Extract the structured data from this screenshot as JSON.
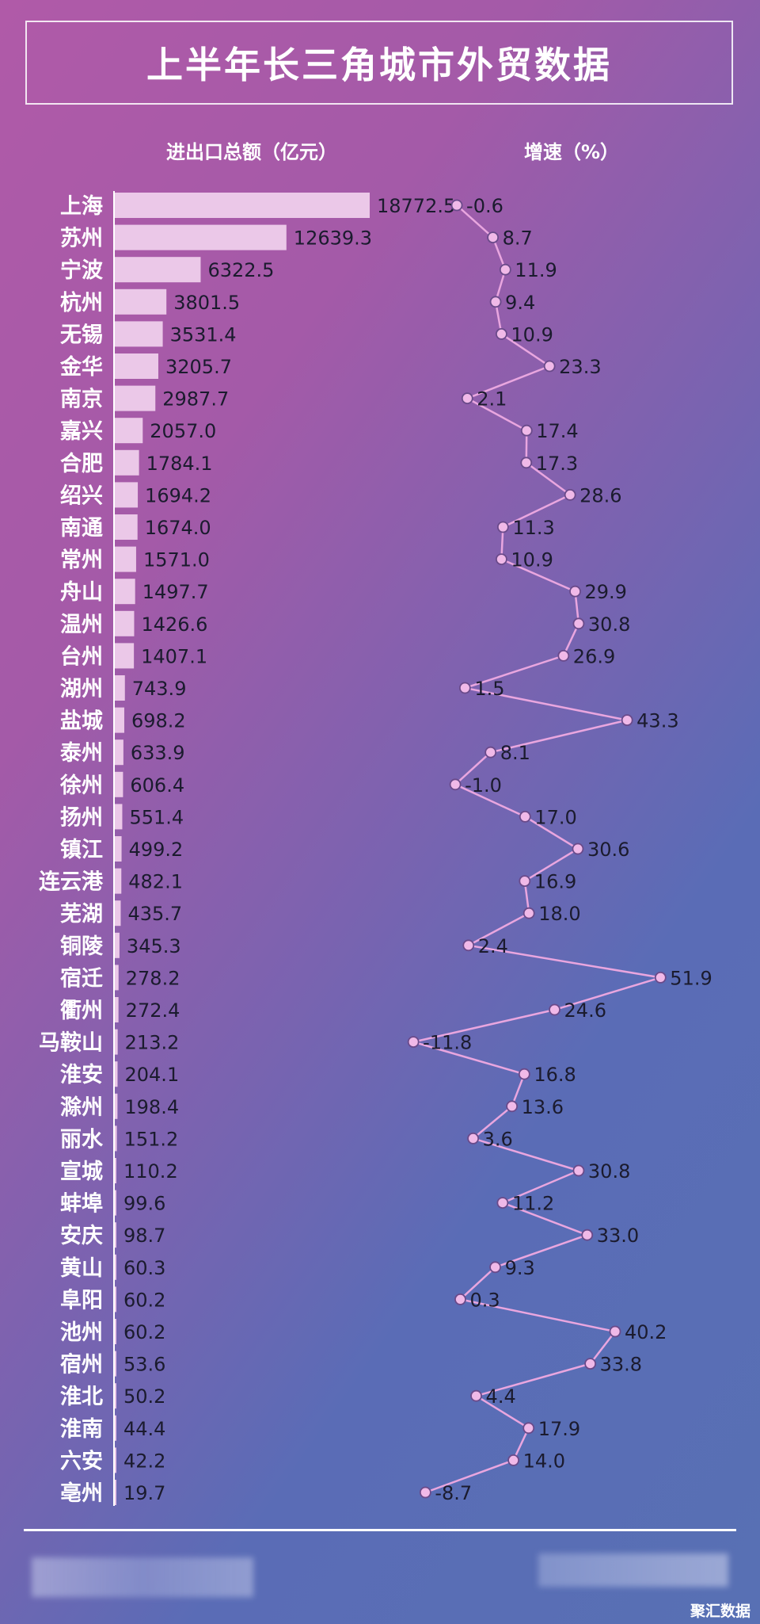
{
  "title": "上半年长三角城市外贸数据",
  "headers": {
    "total": "进出口总额（亿元）",
    "growth": "增速（%）"
  },
  "source": "聚汇数据",
  "colors": {
    "bar": "#ebc8e8",
    "line": "#e9a6df",
    "marker": "#f0b9e8",
    "marker_stroke": "#6a4a8a",
    "text": "#1b1b2e",
    "axis": "#ffffff"
  },
  "chart_data": [
    {
      "type": "bar",
      "orientation": "horizontal",
      "title": "进出口总额（亿元）",
      "categories": [
        "上海",
        "苏州",
        "宁波",
        "杭州",
        "无锡",
        "金华",
        "南京",
        "嘉兴",
        "合肥",
        "绍兴",
        "南通",
        "常州",
        "舟山",
        "温州",
        "台州",
        "湖州",
        "盐城",
        "泰州",
        "徐州",
        "扬州",
        "镇江",
        "连云港",
        "芜湖",
        "铜陵",
        "宿迁",
        "衢州",
        "马鞍山",
        "淮安",
        "滁州",
        "丽水",
        "宣城",
        "蚌埠",
        "安庆",
        "黄山",
        "阜阳",
        "池州",
        "宿州",
        "淮北",
        "淮南",
        "六安",
        "亳州"
      ],
      "values": [
        18772.5,
        12639.3,
        6322.5,
        3801.5,
        3531.4,
        3205.7,
        2987.7,
        2057.0,
        1784.1,
        1694.2,
        1674.0,
        1571.0,
        1497.7,
        1426.6,
        1407.1,
        743.9,
        698.2,
        633.9,
        606.4,
        551.4,
        499.2,
        482.1,
        435.7,
        345.3,
        278.2,
        272.4,
        213.2,
        204.1,
        198.4,
        151.2,
        110.2,
        99.6,
        98.7,
        60.3,
        60.2,
        60.2,
        53.6,
        50.2,
        44.4,
        42.2,
        19.7
      ],
      "value_labels": [
        "18772.5",
        "12639.3",
        "6322.5",
        "3801.5",
        "3531.4",
        "3205.7",
        "2987.7",
        "2057.0",
        "1784.1",
        "1694.2",
        "1674.0",
        "1571.0",
        "1497.7",
        "1426.6",
        "1407.1",
        "743.9",
        "698.2",
        "633.9",
        "606.4",
        "551.4",
        "499.2",
        "482.1",
        "435.7",
        "345.3",
        "278.2",
        "272.4",
        "213.2",
        "204.1",
        "198.4",
        "151.2",
        "110.2",
        "99.6",
        "98.7",
        "60.3",
        "60.2",
        "60.2",
        "53.6",
        "50.2",
        "44.4",
        "42.2",
        "19.7"
      ],
      "xlim": [
        0,
        18772.5
      ]
    },
    {
      "type": "line",
      "orientation": "vertical",
      "title": "增速（%）",
      "categories": [
        "上海",
        "苏州",
        "宁波",
        "杭州",
        "无锡",
        "金华",
        "南京",
        "嘉兴",
        "合肥",
        "绍兴",
        "南通",
        "常州",
        "舟山",
        "温州",
        "台州",
        "湖州",
        "盐城",
        "泰州",
        "徐州",
        "扬州",
        "镇江",
        "连云港",
        "芜湖",
        "铜陵",
        "宿迁",
        "衢州",
        "马鞍山",
        "淮安",
        "滁州",
        "丽水",
        "宣城",
        "蚌埠",
        "安庆",
        "黄山",
        "阜阳",
        "池州",
        "宿州",
        "淮北",
        "淮南",
        "六安",
        "亳州"
      ],
      "values": [
        -0.6,
        8.7,
        11.9,
        9.4,
        10.9,
        23.3,
        2.1,
        17.4,
        17.3,
        28.6,
        11.3,
        10.9,
        29.9,
        30.8,
        26.9,
        1.5,
        43.3,
        8.1,
        -1.0,
        17.0,
        30.6,
        16.9,
        18.0,
        2.4,
        51.9,
        24.6,
        -11.8,
        16.8,
        13.6,
        3.6,
        30.8,
        11.2,
        33.0,
        9.3,
        0.3,
        40.2,
        33.8,
        4.4,
        17.9,
        14.0,
        -8.7
      ],
      "value_labels": [
        "-0.6",
        "8.7",
        "11.9",
        "9.4",
        "10.9",
        "23.3",
        "2.1",
        "17.4",
        "17.3",
        "28.6",
        "11.3",
        "10.9",
        "29.9",
        "30.8",
        "26.9",
        "1.5",
        "43.3",
        "8.1",
        "-1.0",
        "17.0",
        "30.6",
        "16.9",
        "18.0",
        "2.4",
        "51.9",
        "24.6",
        "-11.8",
        "16.8",
        "13.6",
        "3.6",
        "30.8",
        "11.2",
        "33.0",
        "9.3",
        "0.3",
        "40.2",
        "33.8",
        "4.4",
        "17.9",
        "14.0",
        "-8.7"
      ],
      "xlim": [
        -11.8,
        51.9
      ]
    }
  ]
}
